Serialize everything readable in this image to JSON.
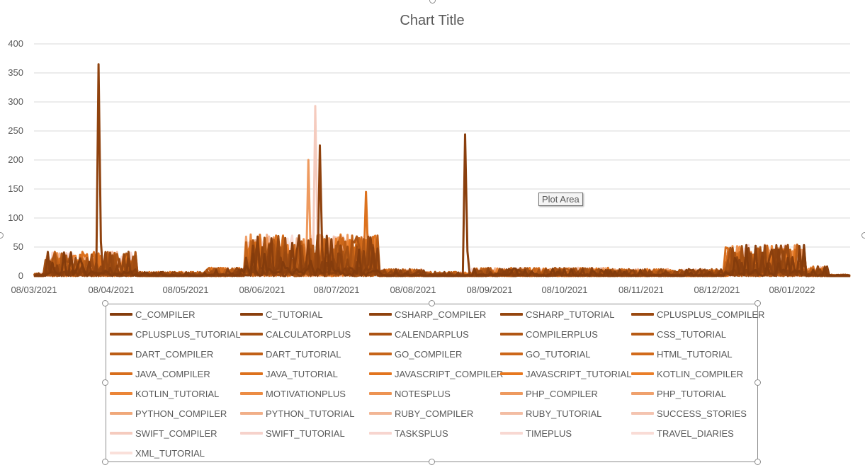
{
  "chart_data": {
    "type": "line",
    "title": "Chart Title",
    "xlabel": "",
    "ylabel": "",
    "ylim": [
      0,
      400
    ],
    "y_ticks": [
      0,
      50,
      100,
      150,
      200,
      250,
      300,
      350,
      400
    ],
    "x_ticks": [
      "08/03/2021",
      "08/04/2021",
      "08/05/2021",
      "08/06/2021",
      "08/07/2021",
      "08/08/2021",
      "08/09/2021",
      "08/10/2021",
      "08/11/2021",
      "08/12/2021",
      "08/01/2022"
    ],
    "x_range_days": 354,
    "grid": true,
    "legend_position": "bottom",
    "series": [
      {
        "name": "C_COMPILER",
        "color": "#843c0c"
      },
      {
        "name": "C_TUTORIAL",
        "color": "#8a3f0d"
      },
      {
        "name": "CSHARP_COMPILER",
        "color": "#8f420e"
      },
      {
        "name": "CSHARP_TUTORIAL",
        "color": "#95460f"
      },
      {
        "name": "CPLUSPLUS_COMPILER",
        "color": "#9a4910"
      },
      {
        "name": "CPLUSPLUS_TUTORIAL",
        "color": "#a04c11"
      },
      {
        "name": "CALCULATORPLUS",
        "color": "#a55012"
      },
      {
        "name": "CALENDARPLUS",
        "color": "#ab5313"
      },
      {
        "name": "COMPILERPLUS",
        "color": "#b05614"
      },
      {
        "name": "CSS_TUTORIAL",
        "color": "#b65a15"
      },
      {
        "name": "DART_COMPILER",
        "color": "#bb5d16"
      },
      {
        "name": "DART_TUTORIAL",
        "color": "#c16017"
      },
      {
        "name": "GO_COMPILER",
        "color": "#c66419"
      },
      {
        "name": "GO_TUTORIAL",
        "color": "#cc671a"
      },
      {
        "name": "HTML_TUTORIAL",
        "color": "#d16a1b"
      },
      {
        "name": "JAVA_COMPILER",
        "color": "#d76e1c"
      },
      {
        "name": "JAVA_TUTORIAL",
        "color": "#dc711d"
      },
      {
        "name": "JAVASCRIPT_COMPILER",
        "color": "#e2741e"
      },
      {
        "name": "JAVASCRIPT_TUTORIAL",
        "color": "#e7781f"
      },
      {
        "name": "KOTLIN_COMPILER",
        "color": "#ea7e29"
      },
      {
        "name": "KOTLIN_TUTORIAL",
        "color": "#eb8537"
      },
      {
        "name": "MOTIVATIONPLUS",
        "color": "#ec8c44"
      },
      {
        "name": "NOTESPLUS",
        "color": "#ed9352"
      },
      {
        "name": "PHP_COMPILER",
        "color": "#ee9a5f"
      },
      {
        "name": "PHP_TUTORIAL",
        "color": "#efa16d"
      },
      {
        "name": "PYTHON_COMPILER",
        "color": "#f0a87a"
      },
      {
        "name": "PYTHON_TUTORIAL",
        "color": "#f1af88"
      },
      {
        "name": "RUBY_COMPILER",
        "color": "#f2b695"
      },
      {
        "name": "RUBY_TUTORIAL",
        "color": "#f3bda3"
      },
      {
        "name": "SUCCESS_STORIES",
        "color": "#f4c4b0"
      },
      {
        "name": "SWIFT_COMPILER",
        "color": "#f5cbbe"
      },
      {
        "name": "SWIFT_TUTORIAL",
        "color": "#f6d2cb"
      },
      {
        "name": "TASKSPLUS",
        "color": "#f7d5cf"
      },
      {
        "name": "TIMEPLUS",
        "color": "#f8d8d2"
      },
      {
        "name": "TRAVEL_DIARIES",
        "color": "#f9dcd6"
      },
      {
        "name": "XML_TUTORIAL",
        "color": "#fae0da"
      }
    ],
    "highlight_peaks": [
      {
        "series": "CSHARP_COMPILER",
        "x": 28,
        "y": 365
      },
      {
        "series": "SWIFT_COMPILER",
        "x": 122,
        "y": 293
      },
      {
        "series": "C_TUTORIAL",
        "x": 187,
        "y": 244
      },
      {
        "series": "CSHARP_COMPILER",
        "x": 124,
        "y": 225
      },
      {
        "series": "PHP_COMPILER",
        "x": 119,
        "y": 200
      },
      {
        "series": "JAVA_TUTORIAL",
        "x": 144,
        "y": 145
      }
    ]
  },
  "tooltip": "Plot Area"
}
